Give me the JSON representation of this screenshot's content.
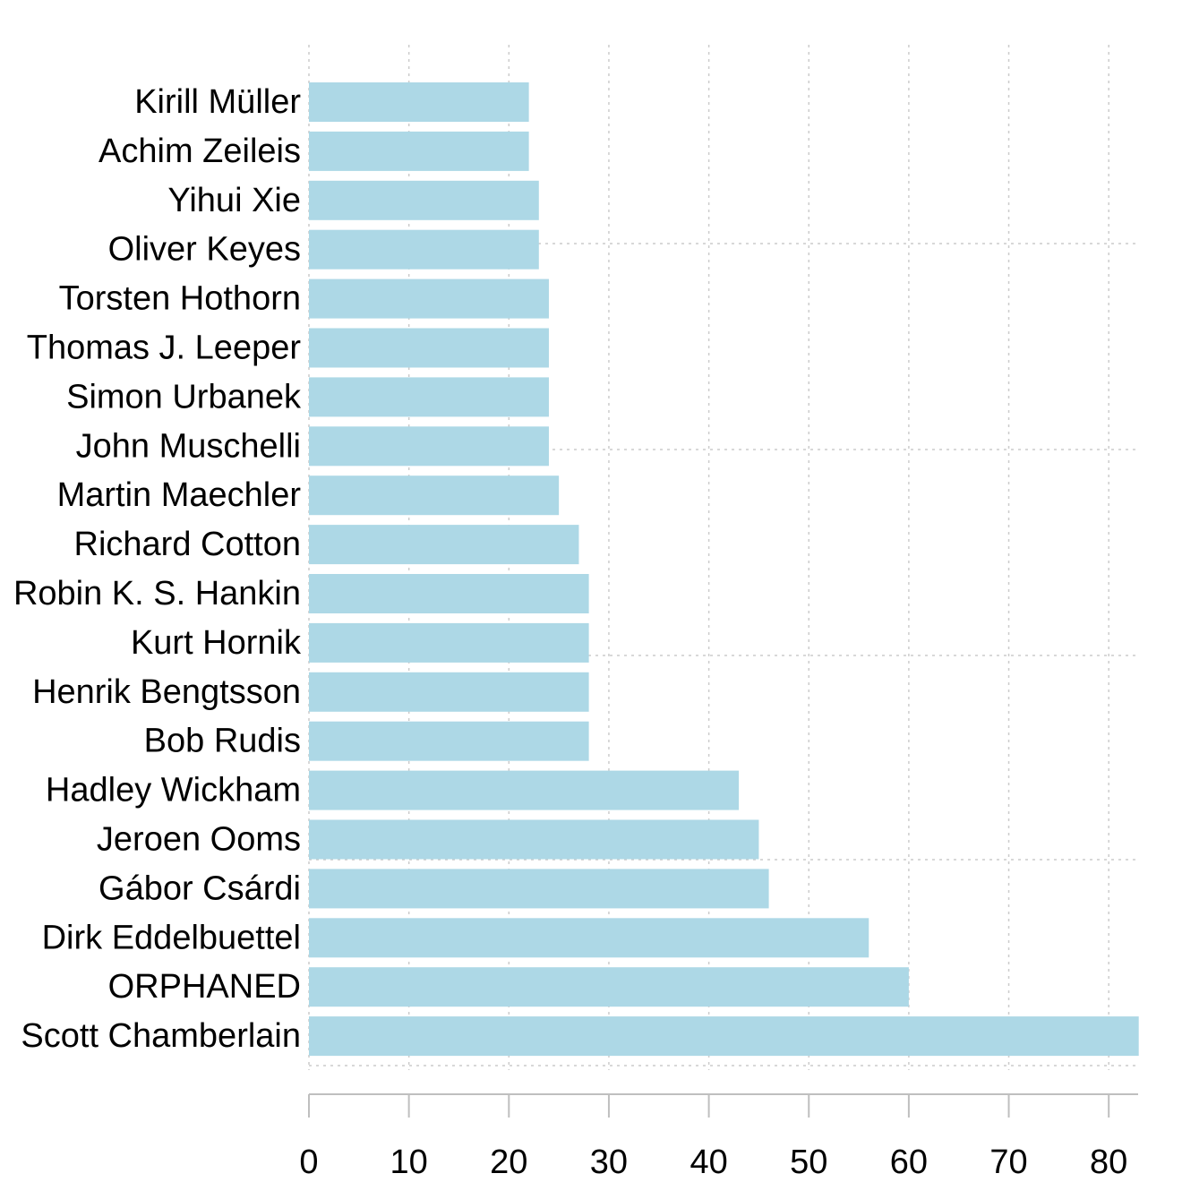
{
  "chart_data": {
    "type": "bar",
    "orientation": "horizontal",
    "title": "",
    "xlabel": "",
    "ylabel": "",
    "categories": [
      "Kirill Müller",
      "Achim Zeileis",
      "Yihui Xie",
      "Oliver Keyes",
      "Torsten Hothorn",
      "Thomas J. Leeper",
      "Simon Urbanek",
      "John Muschelli",
      "Martin Maechler",
      "Richard Cotton",
      "Robin K. S. Hankin",
      "Kurt Hornik",
      "Henrik Bengtsson",
      "Bob Rudis",
      "Hadley Wickham",
      "Jeroen Ooms",
      "Gábor Csárdi",
      "Dirk Eddelbuettel",
      "ORPHANED",
      "Scott Chamberlain"
    ],
    "values": [
      22,
      22,
      23,
      23,
      24,
      24,
      24,
      24,
      25,
      27,
      28,
      28,
      28,
      28,
      43,
      45,
      46,
      56,
      60,
      83
    ],
    "xlim": [
      0,
      83
    ],
    "xticks": [
      0,
      10,
      20,
      30,
      40,
      50,
      60,
      70,
      80
    ],
    "bar_color": "#add8e6",
    "grid": true,
    "legend": "none"
  }
}
